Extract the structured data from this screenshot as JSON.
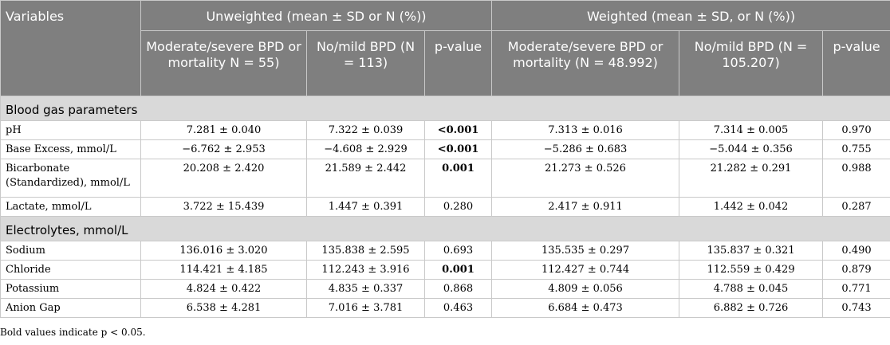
{
  "header": {
    "variables": "Variables",
    "unweighted": "Unweighted (mean ± SD or N (%))",
    "weighted": "Weighted (mean ± SD, or N (%))",
    "col_uw_mod": "Moderate/severe BPD or mortality N = 55)",
    "col_uw_no": "No/mild BPD (N = 113)",
    "col_p": "p-value",
    "col_w_mod": "Moderate/severe BPD or mortality (N = 48.992)",
    "col_w_no": "No/mild BPD (N = 105.207)"
  },
  "sections": [
    {
      "title": "Blood gas parameters",
      "rows": [
        {
          "label": "pH",
          "uw_mod": "7.281 ± 0.040",
          "uw_no": "7.322 ± 0.039",
          "uw_p": "<0.001",
          "uw_p_bold": true,
          "w_mod": "7.313 ± 0.016",
          "w_no": "7.314 ± 0.005",
          "w_p": "0.970"
        },
        {
          "label": "Base Excess, mmol/L",
          "uw_mod": "−6.762 ± 2.953",
          "uw_no": "−4.608 ± 2.929",
          "uw_p": "<0.001",
          "uw_p_bold": true,
          "w_mod": "−5.286 ± 0.683",
          "w_no": "−5.044 ± 0.356",
          "w_p": "0.755"
        },
        {
          "label": "Bicarbonate (Standardized), mmol/L",
          "uw_mod": "20.208 ± 2.420",
          "uw_no": "21.589 ± 2.442",
          "uw_p": "0.001",
          "uw_p_bold": true,
          "w_mod": "21.273 ± 0.526",
          "w_no": "21.282 ± 0.291",
          "w_p": "0.988"
        },
        {
          "label": "Lactate, mmol/L",
          "uw_mod": "3.722 ± 15.439",
          "uw_no": "1.447 ± 0.391",
          "uw_p": "0.280",
          "uw_p_bold": false,
          "w_mod": "2.417 ± 0.911",
          "w_no": "1.442 ± 0.042",
          "w_p": "0.287"
        }
      ]
    },
    {
      "title": "Electrolytes, mmol/L",
      "rows": [
        {
          "label": "Sodium",
          "uw_mod": "136.016 ± 3.020",
          "uw_no": "135.838 ± 2.595",
          "uw_p": "0.693",
          "uw_p_bold": false,
          "w_mod": "135.535 ± 0.297",
          "w_no": "135.837 ± 0.321",
          "w_p": "0.490"
        },
        {
          "label": "Chloride",
          "uw_mod": "114.421 ± 4.185",
          "uw_no": "112.243 ± 3.916",
          "uw_p": "0.001",
          "uw_p_bold": true,
          "w_mod": "112.427 ± 0.744",
          "w_no": "112.559 ± 0.429",
          "w_p": "0.879"
        },
        {
          "label": "Potassium",
          "uw_mod": "4.824 ± 0.422",
          "uw_no": "4.835 ± 0.337",
          "uw_p": "0.868",
          "uw_p_bold": false,
          "w_mod": "4.809 ± 0.056",
          "w_no": "4.788 ± 0.045",
          "w_p": "0.771"
        },
        {
          "label": "Anion Gap",
          "uw_mod": "6.538 ± 4.281",
          "uw_no": "7.016 ± 3.781",
          "uw_p": "0.463",
          "uw_p_bold": false,
          "w_mod": "6.684 ± 0.473",
          "w_no": "6.882 ± 0.726",
          "w_p": "0.743"
        }
      ]
    }
  ],
  "footnote": "Bold values indicate p < 0.05."
}
